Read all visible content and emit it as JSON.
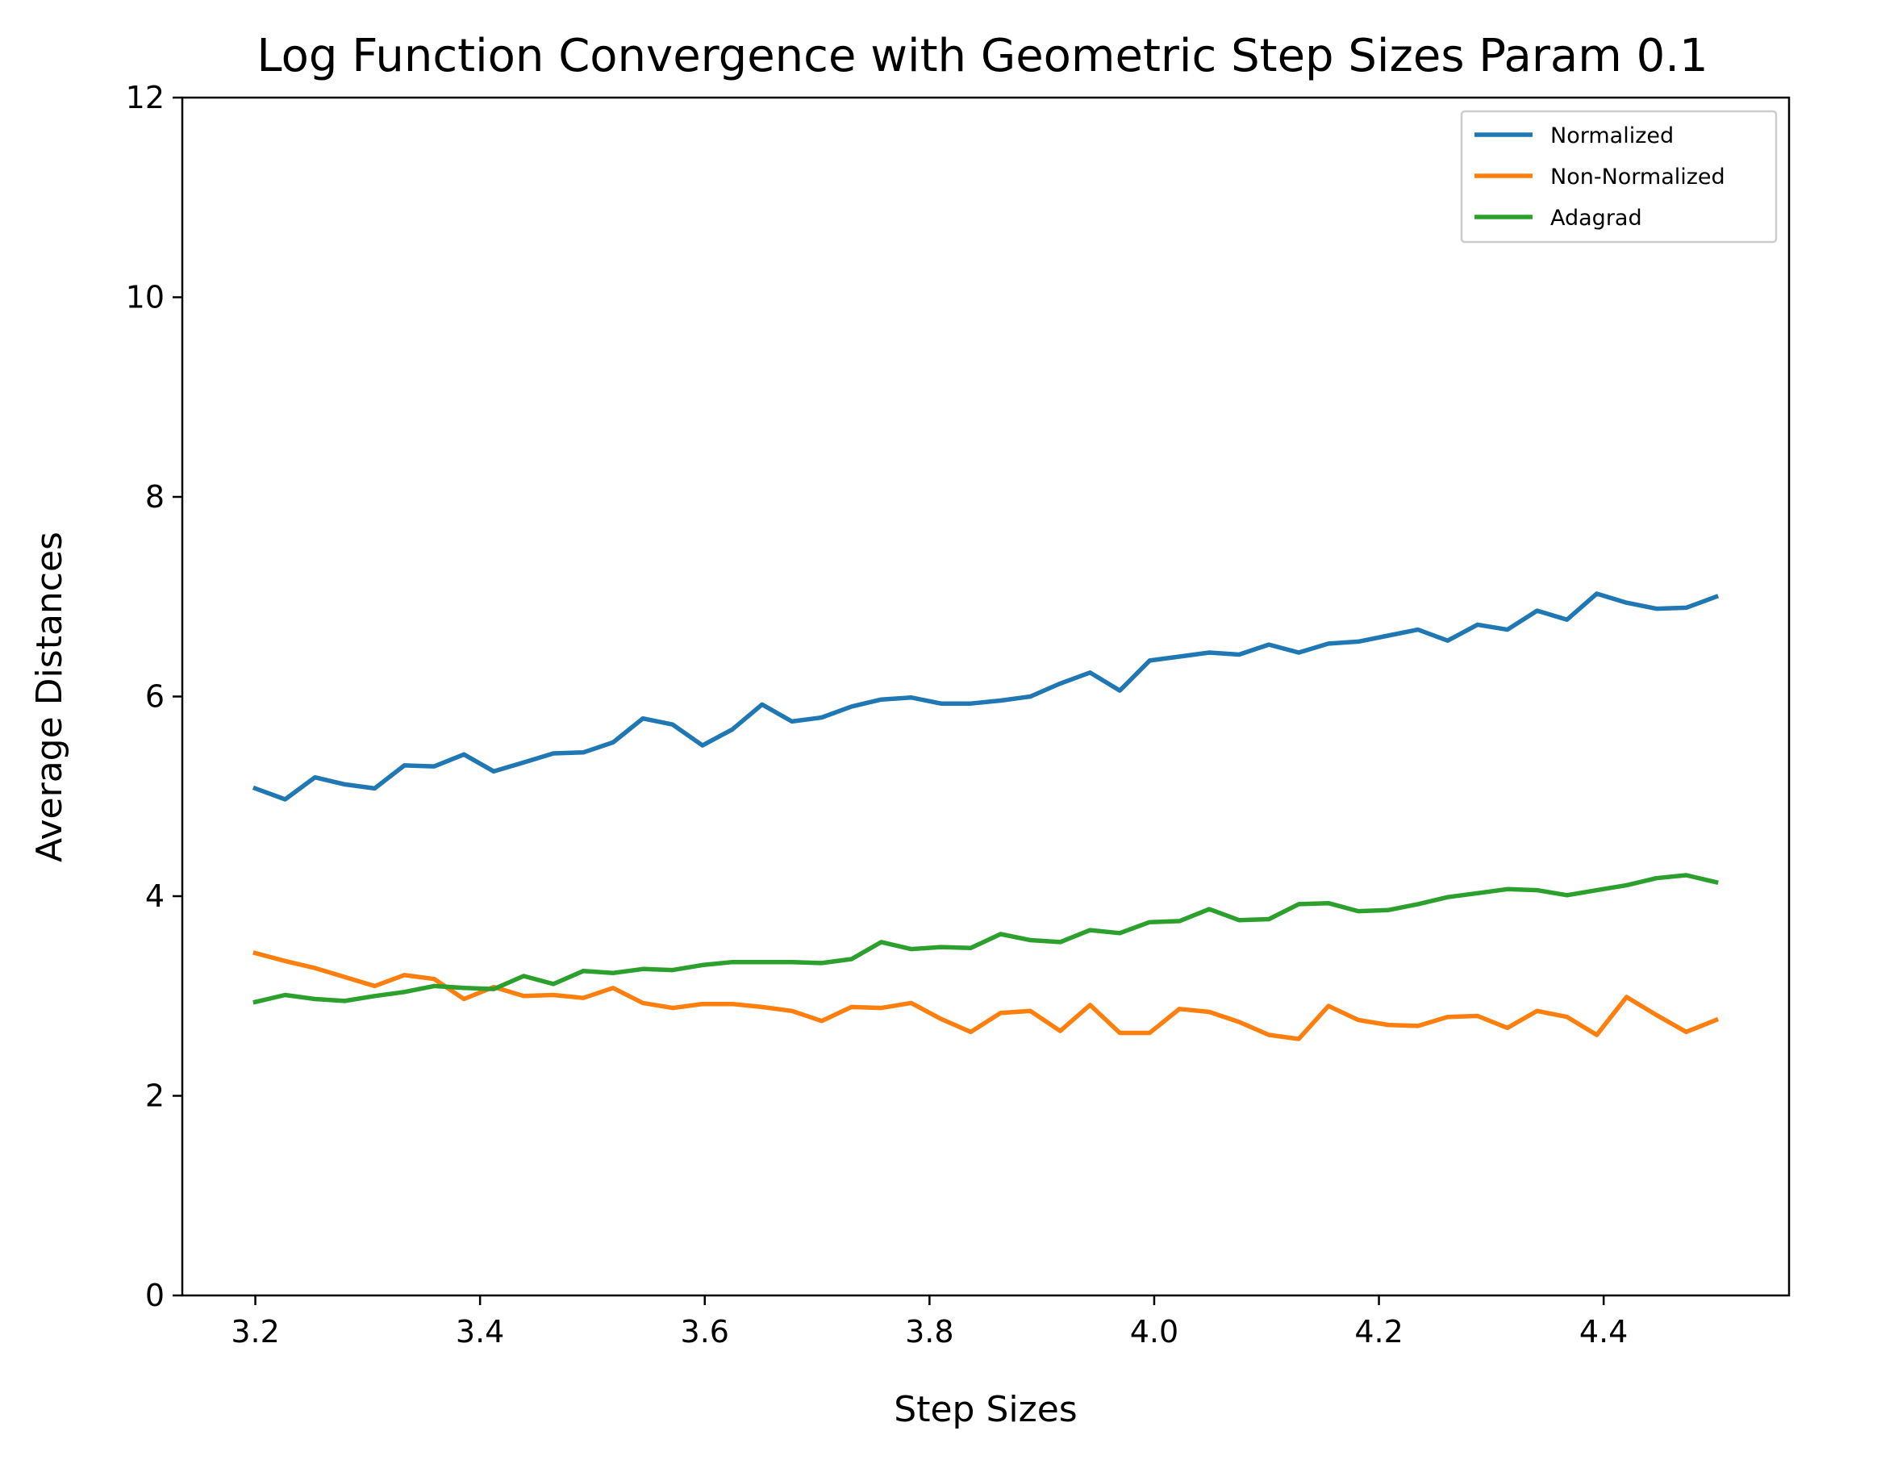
{
  "chart_data": {
    "type": "line",
    "title": "Log Function Convergence with Geometric Step Sizes Param 0.1",
    "xlabel": "Step Sizes",
    "ylabel": "Average Distances",
    "xlim": [
      3.135,
      4.565
    ],
    "ylim": [
      0,
      12
    ],
    "xticks": [
      3.2,
      3.4,
      3.6,
      3.8,
      4.0,
      4.2,
      4.4
    ],
    "xtick_labels": [
      "3.2",
      "3.4",
      "3.6",
      "3.8",
      "4.0",
      "4.2",
      "4.4"
    ],
    "yticks": [
      0,
      2,
      4,
      6,
      8,
      10,
      12
    ],
    "ytick_labels": [
      "0",
      "2",
      "4",
      "6",
      "8",
      "10",
      "12"
    ],
    "grid": false,
    "legend_position": "top-right",
    "x_range": {
      "start": 3.2,
      "end": 4.5,
      "count": 50
    },
    "series": [
      {
        "name": "Normalized",
        "color": "#1f77b4",
        "values": [
          5.08,
          4.97,
          5.19,
          5.12,
          5.08,
          5.31,
          5.3,
          5.42,
          5.25,
          5.34,
          5.43,
          5.44,
          5.54,
          5.78,
          5.72,
          5.51,
          5.67,
          5.92,
          5.75,
          5.79,
          5.9,
          5.97,
          5.99,
          5.93,
          5.93,
          5.96,
          6.0,
          6.13,
          6.24,
          6.06,
          6.36,
          6.4,
          6.44,
          6.42,
          6.52,
          6.44,
          6.53,
          6.55,
          6.61,
          6.67,
          6.56,
          6.72,
          6.67,
          6.86,
          6.77,
          7.03,
          6.94,
          6.88,
          6.89,
          7.0
        ]
      },
      {
        "name": "Non-Normalized",
        "color": "#ff7f0e",
        "values": [
          3.43,
          3.35,
          3.28,
          3.19,
          3.1,
          3.21,
          3.17,
          2.97,
          3.09,
          3.0,
          3.01,
          2.98,
          3.08,
          2.93,
          2.88,
          2.92,
          2.92,
          2.89,
          2.85,
          2.75,
          2.89,
          2.88,
          2.93,
          2.77,
          2.64,
          2.83,
          2.85,
          2.65,
          2.91,
          2.63,
          2.63,
          2.87,
          2.84,
          2.74,
          2.61,
          2.57,
          2.9,
          2.76,
          2.71,
          2.7,
          2.79,
          2.8,
          2.68,
          2.85,
          2.79,
          2.61,
          2.99,
          2.81,
          2.64,
          2.76
        ]
      },
      {
        "name": "Adagrad",
        "color": "#2ca02c",
        "values": [
          2.94,
          3.01,
          2.97,
          2.95,
          3.0,
          3.04,
          3.1,
          3.08,
          3.07,
          3.2,
          3.12,
          3.25,
          3.23,
          3.27,
          3.26,
          3.31,
          3.34,
          3.34,
          3.34,
          3.33,
          3.37,
          3.54,
          3.47,
          3.49,
          3.48,
          3.62,
          3.56,
          3.54,
          3.66,
          3.63,
          3.74,
          3.75,
          3.87,
          3.76,
          3.77,
          3.92,
          3.93,
          3.85,
          3.86,
          3.92,
          3.99,
          4.03,
          4.07,
          4.06,
          4.01,
          4.06,
          4.11,
          4.18,
          4.21,
          4.14
        ]
      }
    ]
  }
}
